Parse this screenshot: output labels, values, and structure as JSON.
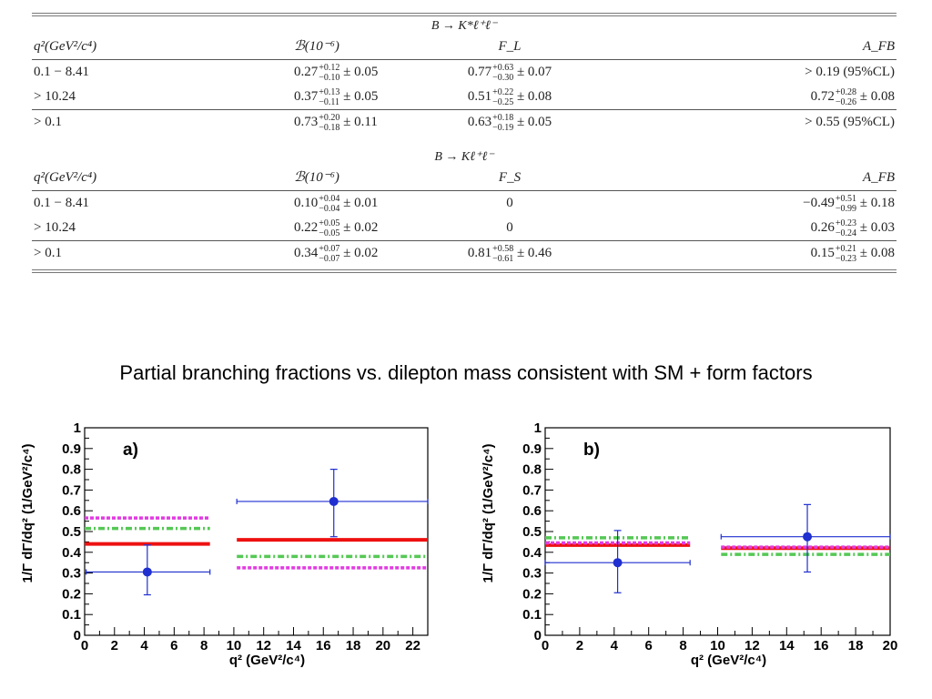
{
  "tables": [
    {
      "process": "B → K*ℓ⁺ℓ⁻",
      "headers": [
        "q²(GeV²/c⁴)",
        "ℬ(10⁻⁶)",
        "F_L",
        "A_FB"
      ],
      "rows": [
        [
          {
            "t": "0.1 − 8.41"
          },
          {
            "c": "0.27",
            "u": "+0.12",
            "d": "−0.10",
            "e": "± 0.05"
          },
          {
            "c": "0.77",
            "u": "+0.63",
            "d": "−0.30",
            "e": "± 0.07"
          },
          {
            "t": "> 0.19 (95%CL)"
          }
        ],
        [
          {
            "t": "> 10.24"
          },
          {
            "c": "0.37",
            "u": "+0.13",
            "d": "−0.11",
            "e": "± 0.05"
          },
          {
            "c": "0.51",
            "u": "+0.22",
            "d": "−0.25",
            "e": "± 0.08"
          },
          {
            "c": "0.72",
            "u": "+0.28",
            "d": "−0.26",
            "e": "± 0.08"
          }
        ],
        [
          {
            "t": "> 0.1"
          },
          {
            "c": "0.73",
            "u": "+0.20",
            "d": "−0.18",
            "e": "± 0.11"
          },
          {
            "c": "0.63",
            "u": "+0.18",
            "d": "−0.19",
            "e": "± 0.05"
          },
          {
            "t": "> 0.55 (95%CL)"
          }
        ]
      ]
    },
    {
      "process": "B → Kℓ⁺ℓ⁻",
      "headers": [
        "q²(GeV²/c⁴)",
        "ℬ(10⁻⁶)",
        "F_S",
        "A_FB"
      ],
      "rows": [
        [
          {
            "t": "0.1 − 8.41"
          },
          {
            "c": "0.10",
            "u": "+0.04",
            "d": "−0.04",
            "e": "± 0.01"
          },
          {
            "t": "0"
          },
          {
            "c": "−0.49",
            "u": "+0.51",
            "d": "−0.99",
            "e": "± 0.18"
          }
        ],
        [
          {
            "t": "> 10.24"
          },
          {
            "c": "0.22",
            "u": "+0.05",
            "d": "−0.05",
            "e": "± 0.02"
          },
          {
            "t": "0"
          },
          {
            "c": "0.26",
            "u": "+0.23",
            "d": "−0.24",
            "e": "± 0.03"
          }
        ],
        [
          {
            "t": "> 0.1"
          },
          {
            "c": "0.34",
            "u": "+0.07",
            "d": "−0.07",
            "e": "± 0.02"
          },
          {
            "c": "0.81",
            "u": "+0.58",
            "d": "−0.61",
            "e": "± 0.46"
          },
          {
            "c": "0.15",
            "u": "+0.21",
            "d": "−0.23",
            "e": "± 0.08"
          }
        ]
      ]
    }
  ],
  "headline": "Partial branching fractions vs. dilepton mass consistent with SM + form factors",
  "colors": {
    "data": "#1f2fd0",
    "sm": "#ee1111",
    "magenta": "#e23be2",
    "green": "#55c855"
  },
  "chart_data": [
    {
      "type": "scatter",
      "panel_label": "a)",
      "xlabel": "q² (GeV²/c⁴)",
      "ylabel": "1/Γ dΓ/dq² (1/GeV²/c⁴)",
      "xlim": [
        0,
        23
      ],
      "ylim": [
        0,
        1
      ],
      "xticks": [
        0,
        2,
        4,
        6,
        8,
        10,
        12,
        14,
        16,
        18,
        20,
        22
      ],
      "yticks": [
        0,
        0.1,
        0.2,
        0.3,
        0.4,
        0.5,
        0.6,
        0.7,
        0.8,
        0.9,
        1
      ],
      "points": [
        {
          "x": 4.2,
          "y": 0.305,
          "xerr": [
            0.1,
            8.4
          ],
          "yerr": [
            0.195,
            0.435
          ]
        },
        {
          "x": 16.7,
          "y": 0.645,
          "xerr": [
            10.2,
            23
          ],
          "yerr": [
            0.475,
            0.8
          ]
        }
      ],
      "model_lines": [
        {
          "x": [
            0,
            8.4
          ],
          "y": 0.44,
          "style": "solid",
          "color": "#ee1111"
        },
        {
          "x": [
            10.2,
            23
          ],
          "y": 0.46,
          "style": "solid",
          "color": "#ee1111"
        },
        {
          "x": [
            0,
            8.4
          ],
          "y": 0.565,
          "style": "dashed",
          "color": "#e23be2"
        },
        {
          "x": [
            10.2,
            23
          ],
          "y": 0.325,
          "style": "dashed",
          "color": "#e23be2"
        },
        {
          "x": [
            0,
            8.4
          ],
          "y": 0.515,
          "style": "dashdot",
          "color": "#55c855"
        },
        {
          "x": [
            10.2,
            23
          ],
          "y": 0.38,
          "style": "dashdot",
          "color": "#55c855"
        }
      ]
    },
    {
      "type": "scatter",
      "panel_label": "b)",
      "xlabel": "q² (GeV²/c⁴)",
      "ylabel": "1/Γ dΓ/dq² (1/GeV²/c⁴)",
      "xlim": [
        0,
        20
      ],
      "ylim": [
        0,
        1
      ],
      "xticks": [
        0,
        2,
        4,
        6,
        8,
        10,
        12,
        14,
        16,
        18,
        20
      ],
      "yticks": [
        0,
        0.1,
        0.2,
        0.3,
        0.4,
        0.5,
        0.6,
        0.7,
        0.8,
        0.9,
        1
      ],
      "points": [
        {
          "x": 4.2,
          "y": 0.35,
          "xerr": [
            0,
            8.4
          ],
          "yerr": [
            0.205,
            0.505
          ]
        },
        {
          "x": 15.2,
          "y": 0.475,
          "xerr": [
            10.2,
            20
          ],
          "yerr": [
            0.305,
            0.63
          ]
        }
      ],
      "model_lines": [
        {
          "x": [
            0,
            8.4
          ],
          "y": 0.435,
          "style": "solid",
          "color": "#ee1111"
        },
        {
          "x": [
            10.2,
            20
          ],
          "y": 0.42,
          "style": "solid",
          "color": "#ee1111"
        },
        {
          "x": [
            0,
            8.4
          ],
          "y": 0.445,
          "style": "dashed",
          "color": "#e23be2"
        },
        {
          "x": [
            10.2,
            20
          ],
          "y": 0.425,
          "style": "dashed",
          "color": "#e23be2"
        },
        {
          "x": [
            0,
            8.4
          ],
          "y": 0.47,
          "style": "dashdot",
          "color": "#55c855"
        },
        {
          "x": [
            10.2,
            20
          ],
          "y": 0.39,
          "style": "dashdot",
          "color": "#55c855"
        }
      ]
    }
  ]
}
